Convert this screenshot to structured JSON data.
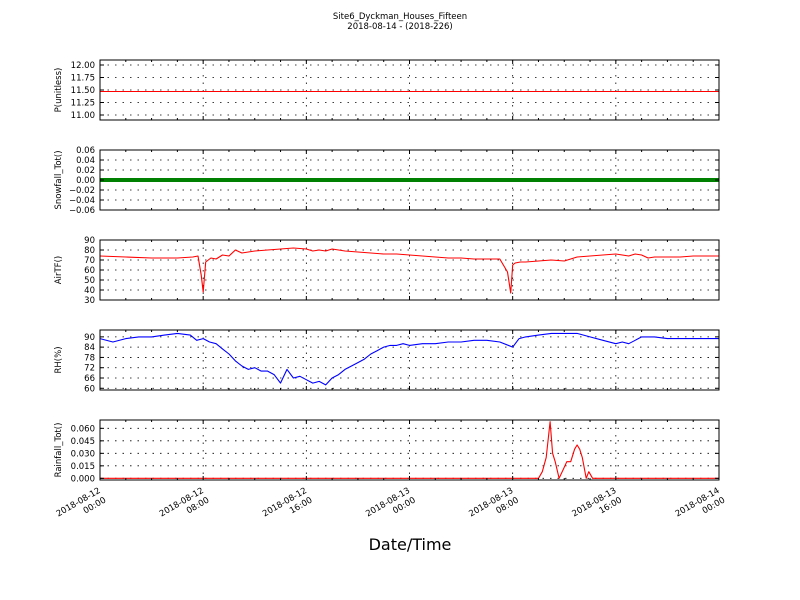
{
  "figure": {
    "title_line1": "Site6_Dyckman_Houses_Fifteen",
    "title_line2": "2018-08-14 - (2018-226)",
    "xlabel": "Date/Time"
  },
  "chart_data": [
    {
      "type": "line",
      "ylabel": "P(unitless)",
      "ylim": [
        10.9,
        12.1
      ],
      "yticks": [
        11.0,
        11.25,
        11.5,
        11.75,
        12.0
      ],
      "ytick_labels": [
        "11.00",
        "11.25",
        "11.50",
        "11.75",
        "12.00"
      ],
      "grid": true,
      "color": "#ff0000",
      "x_hours": [
        0,
        48
      ],
      "series": [
        {
          "x": [
            0,
            48
          ],
          "y": [
            11.47,
            11.47
          ]
        }
      ]
    },
    {
      "type": "line",
      "ylabel": "Snowfall_Tot()",
      "ylim": [
        -0.06,
        0.06
      ],
      "yticks": [
        -0.06,
        -0.04,
        -0.02,
        0.0,
        0.02,
        0.04,
        0.06
      ],
      "ytick_labels": [
        "−0.06",
        "−0.04",
        "−0.02",
        "0.00",
        "0.02",
        "0.04",
        "0.06"
      ],
      "grid": true,
      "color": "#008000",
      "series": [
        {
          "x": [
            0,
            48
          ],
          "y": [
            0,
            0
          ]
        }
      ]
    },
    {
      "type": "line",
      "ylabel": "AirTF()",
      "ylim": [
        30,
        90
      ],
      "yticks": [
        30,
        40,
        50,
        60,
        70,
        80,
        90
      ],
      "ytick_labels": [
        "30",
        "40",
        "50",
        "60",
        "70",
        "80",
        "90"
      ],
      "grid": true,
      "color": "#ff0000",
      "series": [
        {
          "x": [
            0,
            2,
            4,
            6,
            7.2,
            7.6,
            7.85,
            8.0,
            8.2,
            8.6,
            9,
            9.5,
            10,
            10.5,
            11,
            11.5,
            12,
            13,
            14,
            15,
            16,
            16.5,
            17,
            17.5,
            18,
            18.5,
            19,
            20,
            21,
            22,
            23,
            24,
            25,
            26,
            27,
            28,
            29,
            31,
            31.6,
            31.85,
            32.0,
            32.2,
            32.6,
            33,
            34,
            35,
            36,
            37,
            38,
            39,
            40,
            41,
            41.5,
            42,
            42.5,
            43,
            44,
            45,
            46,
            47,
            48
          ],
          "y": [
            74,
            73,
            72,
            72,
            73,
            74,
            55,
            38,
            68,
            72,
            71,
            75,
            74,
            80,
            77,
            78,
            79,
            80,
            81,
            82,
            81,
            79,
            80,
            79,
            81,
            80,
            79,
            78,
            77,
            76,
            76,
            75,
            74,
            73,
            72,
            72,
            71,
            71,
            58,
            37,
            65,
            67,
            68,
            68,
            69,
            70,
            69,
            73,
            74,
            75,
            76,
            74,
            76,
            75,
            72,
            73,
            73,
            73,
            74,
            74,
            74
          ]
        }
      ]
    },
    {
      "type": "line",
      "ylabel": "RH(%)",
      "ylim": [
        59,
        94
      ],
      "yticks": [
        60,
        66,
        72,
        78,
        84,
        90
      ],
      "ytick_labels": [
        "60",
        "66",
        "72",
        "78",
        "84",
        "90"
      ],
      "grid": true,
      "color": "#0000ff",
      "series": [
        {
          "x": [
            0,
            1,
            2,
            3,
            4,
            5,
            6,
            7,
            7.5,
            8,
            8.5,
            9,
            9.5,
            10,
            10.5,
            11,
            11.5,
            12,
            12.5,
            13,
            13.5,
            14,
            14.5,
            15,
            15.5,
            16,
            16.5,
            17,
            17.5,
            18,
            18.5,
            19,
            19.5,
            20,
            20.5,
            21,
            21.5,
            22,
            22.5,
            23,
            23.5,
            24,
            25,
            26,
            27,
            28,
            29,
            30,
            31,
            32,
            32.5,
            33,
            34,
            35,
            36,
            37,
            38,
            39,
            40,
            40.5,
            41,
            41.5,
            42,
            43,
            44,
            45,
            46,
            47,
            48
          ],
          "y": [
            89,
            87,
            89,
            90,
            90,
            91,
            92,
            91,
            88,
            89,
            87,
            86,
            83,
            80,
            76,
            73,
            71,
            72,
            70,
            70,
            68,
            63,
            71,
            66,
            67,
            65,
            63,
            64,
            62,
            66,
            68,
            71,
            73,
            75,
            77,
            80,
            82,
            84,
            85,
            85,
            86,
            85,
            86,
            86,
            87,
            87,
            88,
            88,
            87,
            84,
            89,
            90,
            91,
            92,
            92,
            92,
            90,
            88,
            86,
            87,
            86,
            88,
            90,
            90,
            89,
            89,
            89,
            89,
            89
          ]
        }
      ]
    },
    {
      "type": "line",
      "ylabel": "Rainfall_Tot()",
      "ylim": [
        -0.002,
        0.07
      ],
      "yticks": [
        0.0,
        0.015,
        0.03,
        0.045,
        0.06
      ],
      "ytick_labels": [
        "0.000",
        "0.015",
        "0.030",
        "0.045",
        "0.060"
      ],
      "grid": true,
      "color": "#ff0000",
      "series": [
        {
          "x": [
            0,
            34.0,
            34.3,
            34.6,
            34.9,
            35.1,
            35.3,
            35.6,
            35.9,
            36.2,
            36.5,
            36.8,
            37.0,
            37.2,
            37.4,
            37.7,
            37.9,
            38.2,
            38.5,
            48
          ],
          "y": [
            0,
            0,
            0.008,
            0.025,
            0.068,
            0.03,
            0.02,
            0.0,
            0.01,
            0.02,
            0.02,
            0.035,
            0.04,
            0.035,
            0.025,
            0.0,
            0.008,
            0.0,
            0.0,
            0
          ]
        }
      ]
    }
  ],
  "x_axis": {
    "range_hours": [
      0,
      48
    ],
    "ticks_hours": [
      0,
      8,
      16,
      24,
      32,
      40,
      48
    ],
    "tick_labels": [
      [
        "2018-08-12",
        "00:00"
      ],
      [
        "2018-08-12",
        "08:00"
      ],
      [
        "2018-08-12",
        "16:00"
      ],
      [
        "2018-08-13",
        "00:00"
      ],
      [
        "2018-08-13",
        "08:00"
      ],
      [
        "2018-08-13",
        "16:00"
      ],
      [
        "2018-08-14",
        "00:00"
      ]
    ]
  }
}
